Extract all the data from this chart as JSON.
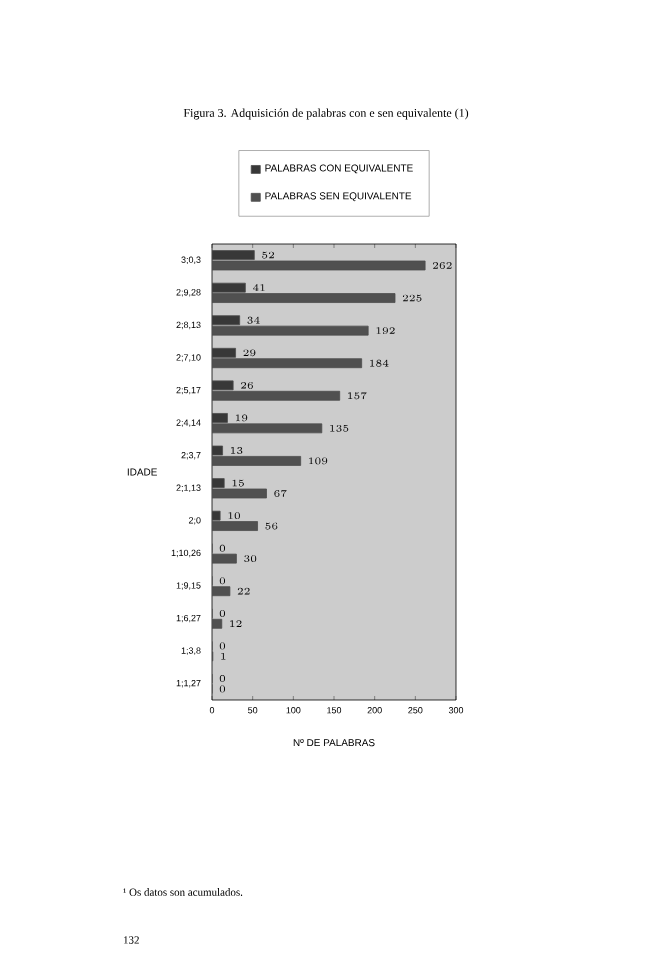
{
  "chart_data": {
    "type": "bar",
    "orientation": "horizontal",
    "title": "Figura 3. Adquisición de palabras con e sen equivalente (1)",
    "xlabel": "Nº DE PALABRAS",
    "ylabel": "IDADE",
    "categories": [
      "3;0,3",
      "2;9,28",
      "2;8,13",
      "2;7,10",
      "2;5,17",
      "2;4,14",
      "2;3,7",
      "2;1,13",
      "2;0",
      "1;10,26",
      "1;9,15",
      "1;6,27",
      "1;3,8",
      "1;1,27"
    ],
    "series": [
      {
        "name": "PALABRAS CON EQUIVALENTE",
        "color": "#383838",
        "values": [
          52,
          41,
          34,
          29,
          26,
          19,
          13,
          15,
          10,
          0,
          0,
          0,
          0,
          0
        ]
      },
      {
        "name": "PALABRAS SEN EQUIVALENTE",
        "color": "#505050",
        "values": [
          262,
          225,
          192,
          184,
          157,
          135,
          109,
          67,
          56,
          30,
          22,
          12,
          1,
          0
        ]
      }
    ],
    "xlim": [
      0,
      300
    ],
    "xticks": [
      0,
      50,
      100,
      150,
      200,
      250,
      300
    ],
    "data_labels": true,
    "legend": "top",
    "annotations": [
      "¹ Os datos son acumulados.",
      "132"
    ]
  }
}
